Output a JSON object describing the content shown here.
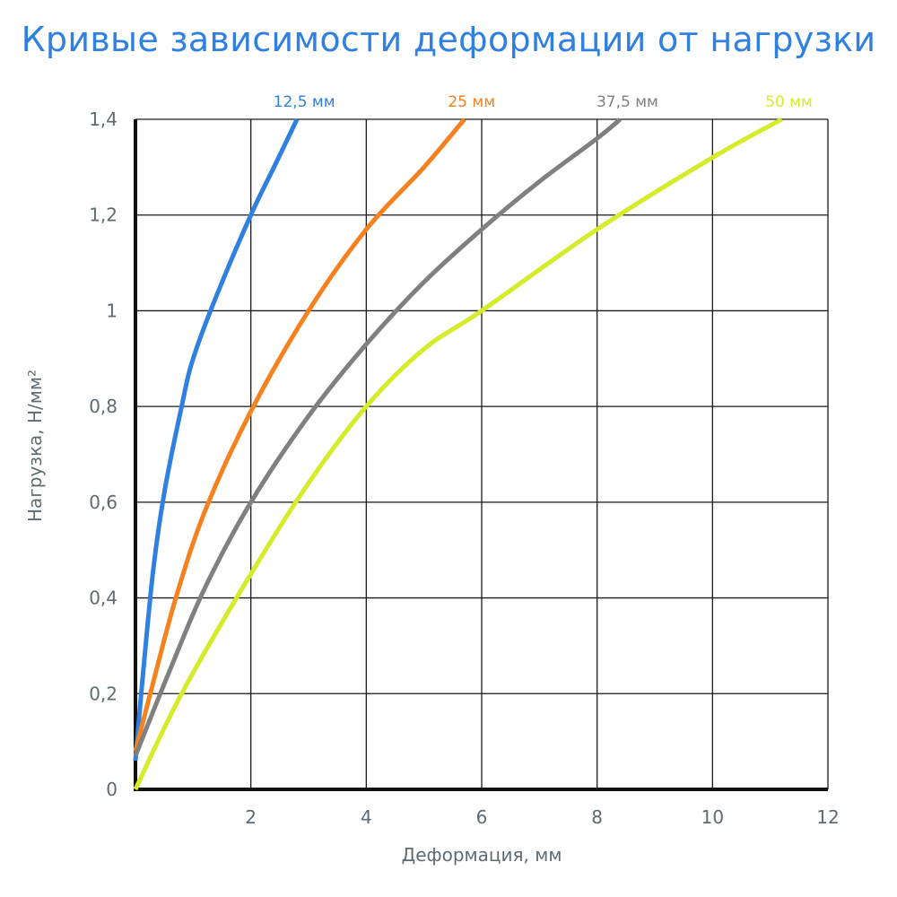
{
  "chart_data": {
    "type": "line",
    "title": "Кривые зависимости деформации от нагрузки",
    "xlabel": "Деформация, мм",
    "ylabel": "Нагрузка, Н/мм²",
    "xlim": [
      0,
      12
    ],
    "ylim": [
      0,
      1.4
    ],
    "x_ticks": [
      {
        "value": 2,
        "label": "2"
      },
      {
        "value": 4,
        "label": "4"
      },
      {
        "value": 6,
        "label": "6"
      },
      {
        "value": 8,
        "label": "8"
      },
      {
        "value": 10,
        "label": "10"
      },
      {
        "value": 12,
        "label": "12"
      }
    ],
    "y_ticks": [
      {
        "value": 0,
        "label": "0"
      },
      {
        "value": 0.2,
        "label": "0,2"
      },
      {
        "value": 0.4,
        "label": "0,4"
      },
      {
        "value": 0.6,
        "label": "0,6"
      },
      {
        "value": 0.8,
        "label": "0,8"
      },
      {
        "value": 1.0,
        "label": "1"
      },
      {
        "value": 1.2,
        "label": "1,2"
      },
      {
        "value": 1.4,
        "label": "1,4"
      }
    ],
    "grid": true,
    "legend": "labels above plot at curve ends",
    "series": [
      {
        "name": "12,5 мм",
        "color": "#2f80e0",
        "x": [
          0,
          0.1,
          0.3,
          0.5,
          0.8,
          1.0,
          1.4,
          2.0,
          2.4,
          2.8
        ],
        "y": [
          0.06,
          0.2,
          0.45,
          0.62,
          0.8,
          0.9,
          1.03,
          1.2,
          1.3,
          1.4
        ]
      },
      {
        "name": "25 мм",
        "color": "#f5821f",
        "x": [
          0,
          0.3,
          0.7,
          1.2,
          2.0,
          3.0,
          4.0,
          5.0,
          5.7
        ],
        "y": [
          0.08,
          0.22,
          0.4,
          0.58,
          0.79,
          1.0,
          1.17,
          1.3,
          1.4
        ]
      },
      {
        "name": "37,5 мм",
        "color": "#808080",
        "x": [
          0,
          0.6,
          1.2,
          2.0,
          3.0,
          4.0,
          5.0,
          6.0,
          7.0,
          8.0,
          8.4
        ],
        "y": [
          0.07,
          0.25,
          0.42,
          0.6,
          0.78,
          0.93,
          1.06,
          1.17,
          1.27,
          1.36,
          1.4
        ]
      },
      {
        "name": "50 мм",
        "color": "#d4ec2a",
        "x": [
          0,
          0.8,
          2.0,
          3.0,
          4.0,
          5.0,
          6.0,
          8.0,
          10.0,
          11.2
        ],
        "y": [
          0,
          0.2,
          0.45,
          0.64,
          0.8,
          0.92,
          1.0,
          1.17,
          1.32,
          1.4
        ]
      }
    ]
  }
}
